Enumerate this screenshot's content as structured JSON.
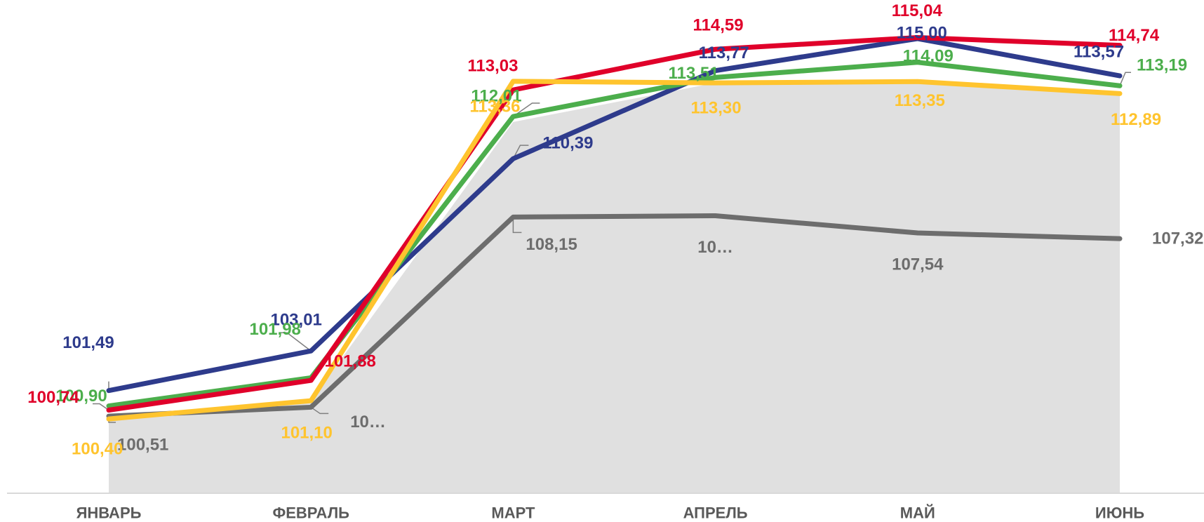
{
  "chart_data": {
    "type": "line",
    "title": "",
    "xlabel": "",
    "ylabel": "",
    "grid": false,
    "legend": "none",
    "y_axis_visible": false,
    "ylim": [
      99.5,
      117.0
    ],
    "categories": [
      "ЯНВАРЬ",
      "ФЕВРАЛЬ",
      "МАРТ",
      "АПРЕЛЬ",
      "МАЙ",
      "ИЮНЬ"
    ],
    "area": {
      "color": "#e0e0e0",
      "values": [
        100.4,
        101.1,
        111.8,
        113.3,
        113.35,
        112.89
      ]
    },
    "series": [
      {
        "color": "#6d6d6d",
        "values": [
          100.51,
          100.85,
          108.15,
          108.2,
          107.54,
          107.32
        ],
        "labels": [
          "100,51",
          "10…",
          "108,15",
          "10…",
          "107,54",
          "107,32"
        ]
      },
      {
        "color": "#2e3b8c",
        "values": [
          101.49,
          103.01,
          110.39,
          113.77,
          115.0,
          113.57
        ],
        "labels": [
          "101,49",
          "103,01",
          "110,39",
          "113,77",
          "115,00",
          "113,57"
        ]
      },
      {
        "color": "#4cae4c",
        "values": [
          100.9,
          101.98,
          112.01,
          113.51,
          114.09,
          113.19
        ],
        "labels": [
          "100,90",
          "101,98",
          "112,01",
          "113,51",
          "114,09",
          "113,19"
        ]
      },
      {
        "color": "#e0002a",
        "values": [
          100.74,
          101.88,
          113.03,
          114.59,
          115.04,
          114.74
        ],
        "labels": [
          "100,74",
          "101,88",
          "113,03",
          "114,59",
          "115,04",
          "114,74"
        ]
      },
      {
        "color": "#ffc42e",
        "values": [
          100.4,
          101.1,
          113.36,
          113.3,
          113.35,
          112.89
        ],
        "labels": [
          "100,40",
          "101,10",
          "113,36",
          "113,30",
          "113,35",
          "112,89"
        ]
      }
    ]
  }
}
